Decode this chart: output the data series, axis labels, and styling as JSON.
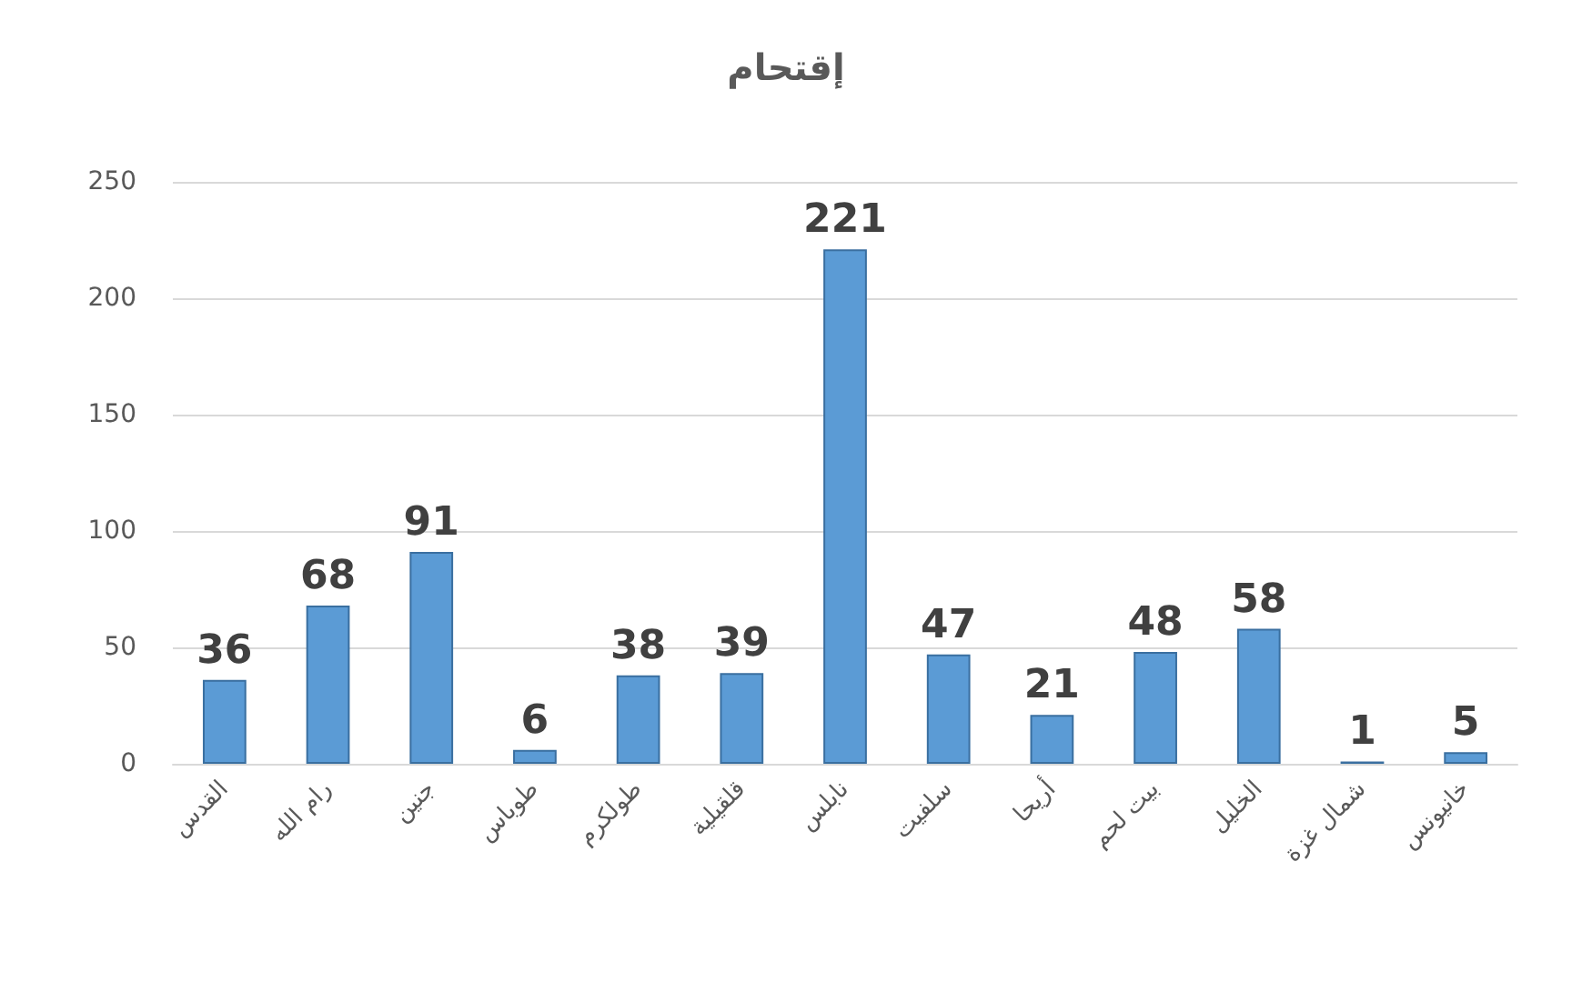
{
  "chart_data": {
    "type": "bar",
    "title": "إقتحام",
    "categories": [
      "القدس",
      "رام الله",
      "جنين",
      "طوباس",
      "طولكرم",
      "قلقيلية",
      "نابلس",
      "سلفيت",
      "أريحا",
      "بيت لحم",
      "الخليل",
      "شمال غزة",
      "خانيونس"
    ],
    "values": [
      36,
      68,
      91,
      6,
      38,
      39,
      221,
      47,
      21,
      48,
      58,
      1,
      5
    ],
    "color": "#5b9bd5",
    "ylim": [
      0,
      250
    ],
    "yticks": [
      0,
      50,
      100,
      150,
      200,
      250
    ],
    "grid": "y",
    "data_labels": true
  }
}
